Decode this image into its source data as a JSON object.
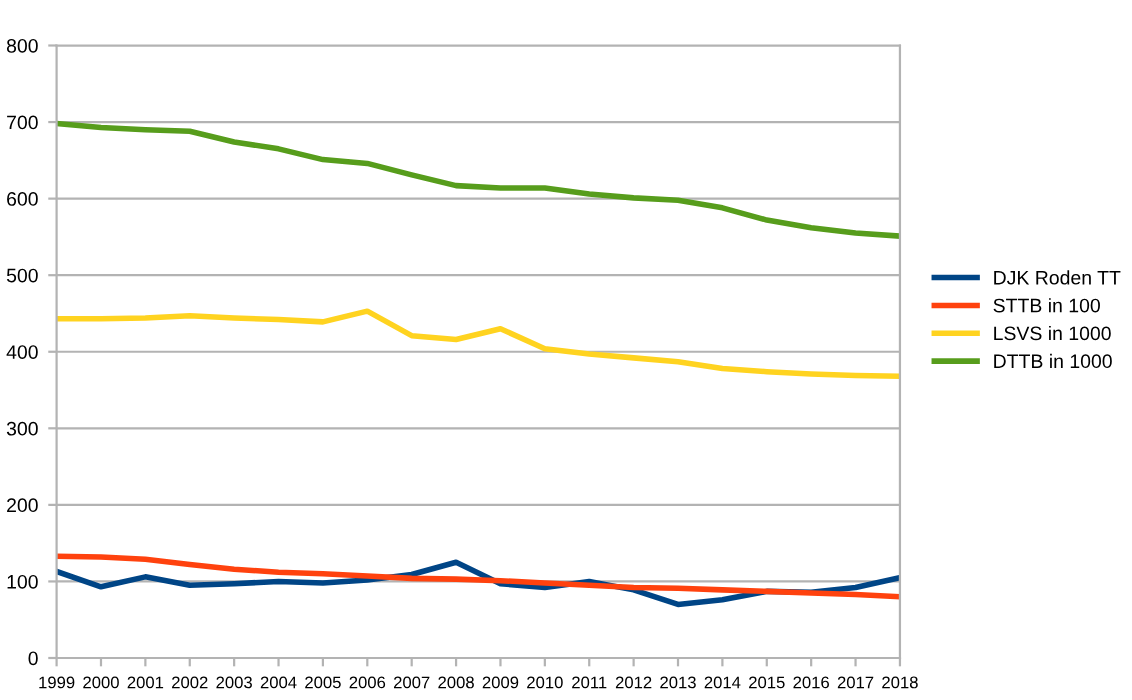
{
  "chart_data": {
    "type": "line",
    "categories": [
      "1999",
      "2000",
      "2001",
      "2002",
      "2003",
      "2004",
      "2005",
      "2006",
      "2007",
      "2008",
      "2009",
      "2010",
      "2011",
      "2012",
      "2013",
      "2014",
      "2015",
      "2016",
      "2017",
      "2018"
    ],
    "series": [
      {
        "name": "DJK Roden TT",
        "color": "#004586",
        "values": [
          113,
          93,
          106,
          95,
          97,
          100,
          98,
          102,
          109,
          125,
          97,
          92,
          100,
          89,
          70,
          76,
          87,
          86,
          92,
          105
        ]
      },
      {
        "name": "STTB in 100",
        "color": "#ff420e",
        "values": [
          133,
          132,
          129,
          122,
          116,
          112,
          110,
          107,
          104,
          103,
          101,
          98,
          95,
          92,
          91,
          89,
          87,
          85,
          83,
          80
        ]
      },
      {
        "name": "LSVS in 1000",
        "color": "#ffd320",
        "values": [
          443,
          443,
          444,
          447,
          444,
          442,
          439,
          453,
          421,
          416,
          430,
          404,
          397,
          392,
          387,
          378,
          374,
          371,
          369,
          368
        ]
      },
      {
        "name": "DTTB in 1000",
        "color": "#579d1c",
        "values": [
          698,
          693,
          690,
          688,
          674,
          665,
          651,
          646,
          631,
          617,
          614,
          614,
          606,
          601,
          598,
          588,
          572,
          562,
          555,
          551
        ]
      }
    ],
    "ylim": [
      0,
      800
    ],
    "yticks": [
      0,
      100,
      200,
      300,
      400,
      500,
      600,
      700,
      800
    ],
    "grid": "y",
    "legend": "right",
    "marker": "none",
    "line_style": "solid"
  }
}
